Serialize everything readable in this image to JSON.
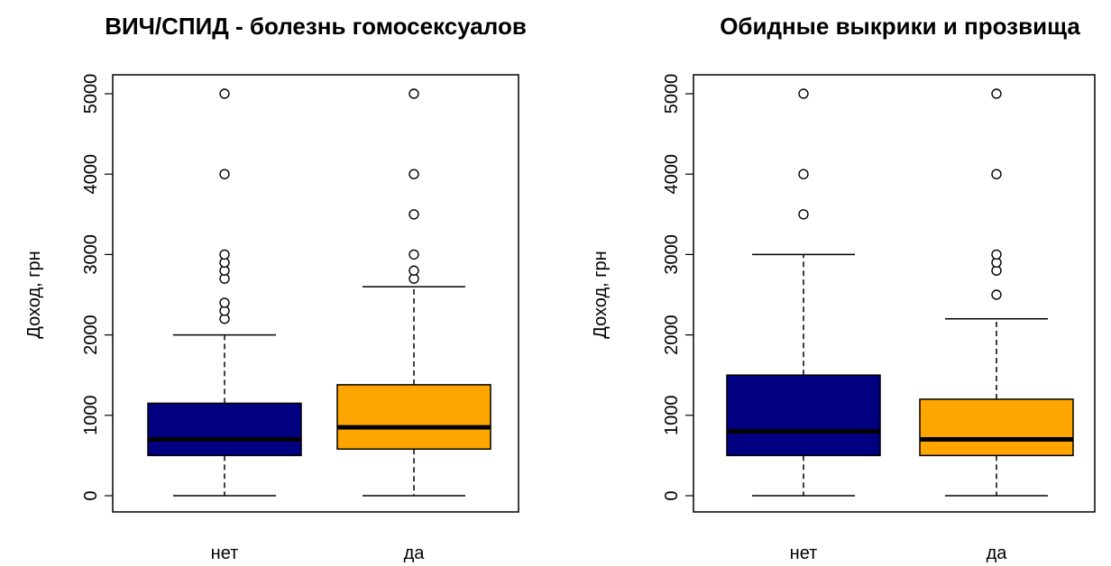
{
  "chart_data": [
    {
      "type": "boxplot",
      "title": "ВИЧ/СПИД - болезнь гомосексуалов",
      "xlabel": "",
      "ylabel": "Доход, грн",
      "ylim": [
        0,
        5000
      ],
      "y_ticks": [
        "0",
        "1000",
        "2000",
        "3000",
        "4000",
        "5000"
      ],
      "categories": [
        "нет",
        "да"
      ],
      "boxes": [
        {
          "category": "нет",
          "color": "#000080",
          "min": 0,
          "q1": 500,
          "median": 700,
          "q3": 1150,
          "max": 2000,
          "outliers": [
            2200,
            2300,
            2400,
            2700,
            2800,
            2900,
            3000,
            4000,
            5000
          ]
        },
        {
          "category": "да",
          "color": "#FFA500",
          "min": 0,
          "q1": 580,
          "median": 850,
          "q3": 1380,
          "max": 2600,
          "outliers": [
            2700,
            2800,
            3000,
            3500,
            4000,
            5000
          ]
        }
      ],
      "grid": false
    },
    {
      "type": "boxplot",
      "title": "Обидные выкрики и прозвища",
      "xlabel": "",
      "ylabel": "Доход, грн",
      "ylim": [
        0,
        5000
      ],
      "y_ticks": [
        "0",
        "1000",
        "2000",
        "3000",
        "4000",
        "5000"
      ],
      "categories": [
        "нет",
        "да"
      ],
      "boxes": [
        {
          "category": "нет",
          "color": "#000080",
          "min": 0,
          "q1": 500,
          "median": 800,
          "q3": 1500,
          "max": 3000,
          "outliers": [
            3500,
            4000,
            5000
          ]
        },
        {
          "category": "да",
          "color": "#FFA500",
          "min": 0,
          "q1": 500,
          "median": 700,
          "q3": 1200,
          "max": 2200,
          "outliers": [
            2500,
            2800,
            2900,
            3000,
            4000,
            5000
          ]
        }
      ],
      "grid": false
    }
  ]
}
